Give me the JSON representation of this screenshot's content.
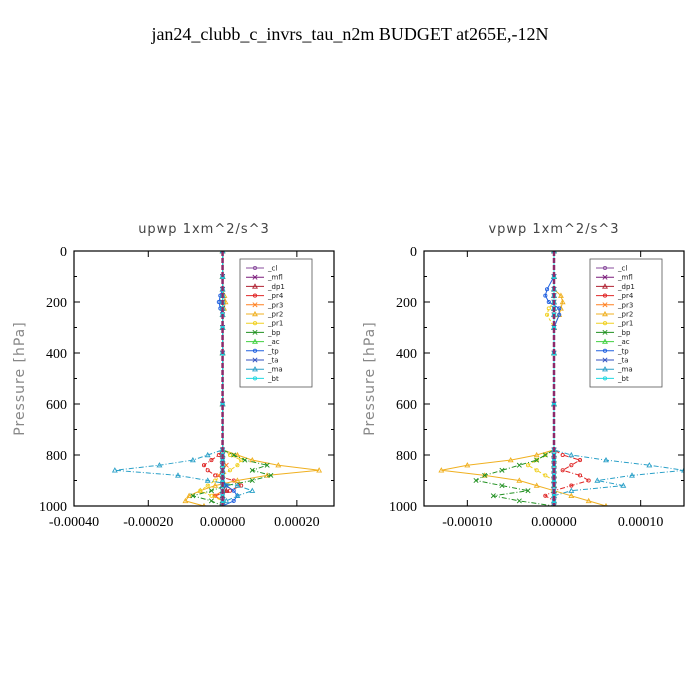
{
  "title": "jan24_clubb_c_invrs_tau_n2m  BUDGET at265E,-12N",
  "chart_data": [
    {
      "type": "line",
      "title": "upwp   1xm^2/s^3",
      "ylabel": "Pressure [hPa]",
      "xlim": [
        -0.0004,
        0.0003
      ],
      "ylim": [
        1000,
        0
      ],
      "xticks": [
        -0.0004,
        -0.0002,
        0,
        0.0002
      ],
      "xtick_labels": [
        "-0.00040",
        "-0.00020",
        "0.00000",
        "0.00020"
      ],
      "yticks": [
        0,
        200,
        400,
        600,
        800,
        1000
      ],
      "ytick_labels": [
        "0",
        "200",
        "400",
        "600",
        "800",
        "1000"
      ],
      "legend_position": "top-right",
      "levels": [
        0,
        100,
        150,
        175,
        200,
        225,
        250,
        300,
        400,
        600,
        780,
        800,
        820,
        840,
        860,
        880,
        900,
        920,
        940,
        960,
        980,
        1000
      ],
      "series": [
        {
          "name": "_cl",
          "color": "#8a4d9e",
          "values": [
            0,
            0,
            0,
            0,
            0,
            0,
            0,
            0,
            0,
            0,
            0,
            0,
            0,
            0,
            0,
            0,
            0,
            0,
            0,
            0,
            0,
            0
          ]
        },
        {
          "name": "_mfl",
          "color": "#7a1a7a",
          "values": [
            0,
            0,
            0,
            0,
            0,
            0,
            0,
            0,
            0,
            0,
            0,
            0,
            0,
            0,
            0,
            0,
            0,
            0,
            0,
            0,
            0,
            0
          ]
        },
        {
          "name": "_dp1",
          "color": "#b02030",
          "values": [
            0,
            0,
            0,
            0,
            0,
            0,
            0,
            0,
            0,
            0,
            0,
            0,
            0,
            0,
            0,
            0,
            0,
            0,
            1e-05,
            0,
            0,
            0
          ]
        },
        {
          "name": "_pr4",
          "color": "#e02828",
          "values": [
            0,
            0,
            0,
            0,
            0,
            0,
            0,
            0,
            0,
            0,
            0,
            -1e-05,
            -3e-05,
            -5e-05,
            -4e-05,
            -2e-05,
            3e-05,
            5e-05,
            2e-05,
            -2e-05,
            0,
            0
          ]
        },
        {
          "name": "_pr3",
          "color": "#ff8020",
          "values": [
            0,
            0,
            0,
            0,
            0,
            0,
            0,
            0,
            0,
            0,
            0,
            0,
            0,
            1e-05,
            0,
            -1e-05,
            0,
            0,
            0,
            -2e-05,
            0,
            0
          ]
        },
        {
          "name": "_pr2",
          "color": "#f0b020",
          "values": [
            0,
            0,
            0,
            5e-06,
            8e-06,
            4e-06,
            0,
            0,
            0,
            0,
            0,
            4e-05,
            8e-05,
            0.00015,
            0.00026,
            0.00012,
            4e-05,
            -2e-05,
            -6e-05,
            -9e-05,
            -0.0001,
            -5e-05
          ]
        },
        {
          "name": "_pr1",
          "color": "#f0d020",
          "values": [
            0,
            0,
            0,
            0,
            0,
            0,
            0,
            0,
            0,
            0,
            0,
            2e-05,
            5e-05,
            4e-05,
            2e-05,
            0,
            -2e-05,
            -4e-05,
            -6e-05,
            -3e-05,
            0,
            0
          ]
        },
        {
          "name": "_bp",
          "color": "#209020",
          "values": [
            0,
            0,
            0,
            0,
            0,
            0,
            0,
            0,
            0,
            0,
            0,
            3e-05,
            6e-05,
            0.00012,
            8e-05,
            0.00013,
            8e-05,
            1e-05,
            -3e-05,
            -8e-05,
            -3e-05,
            0
          ]
        },
        {
          "name": "_ac",
          "color": "#40d040",
          "values": [
            0,
            0,
            0,
            0,
            0,
            0,
            0,
            0,
            0,
            0,
            0,
            0,
            0,
            0,
            0,
            0,
            0,
            0,
            0,
            0,
            0,
            0
          ]
        },
        {
          "name": "_tp",
          "color": "#2060e0",
          "values": [
            0,
            0,
            0,
            -6e-06,
            -1e-05,
            -6e-06,
            0,
            0,
            0,
            0,
            0,
            0,
            0,
            0,
            0,
            0,
            0,
            1e-05,
            3e-05,
            4e-05,
            3e-05,
            0
          ]
        },
        {
          "name": "_ta",
          "color": "#3050c0",
          "values": [
            0,
            0,
            0,
            0,
            0,
            0,
            0,
            0,
            0,
            0,
            0,
            0,
            0,
            0,
            0,
            0,
            0,
            0,
            0,
            0,
            0,
            0
          ]
        },
        {
          "name": "_ma",
          "color": "#2aa0c8",
          "values": [
            0,
            0,
            0,
            0,
            0,
            0,
            0,
            0,
            0,
            0,
            0,
            -4e-05,
            -8e-05,
            -0.00017,
            -0.00029,
            -0.00012,
            -4e-05,
            4e-05,
            8e-05,
            4e-05,
            1e-05,
            0
          ]
        },
        {
          "name": "_bt",
          "color": "#20d8e0",
          "values": [
            0,
            0,
            0,
            0,
            0,
            0,
            0,
            0,
            0,
            0,
            0,
            0,
            0,
            0,
            0,
            0,
            0,
            0,
            0,
            0,
            0,
            0
          ]
        }
      ]
    },
    {
      "type": "line",
      "title": "vpwp   1xm^2/s^3",
      "ylabel": "Pressure [hPa]",
      "xlim": [
        -0.00015,
        0.00015
      ],
      "ylim": [
        1000,
        0
      ],
      "xticks": [
        -0.0001,
        0,
        0.0001
      ],
      "xtick_labels": [
        "-0.00010",
        "0.00000",
        "0.00010"
      ],
      "yticks": [
        0,
        200,
        400,
        600,
        800,
        1000
      ],
      "ytick_labels": [
        "0",
        "200",
        "400",
        "600",
        "800",
        "1000"
      ],
      "legend_position": "top-right",
      "levels": [
        0,
        100,
        150,
        175,
        200,
        225,
        250,
        300,
        400,
        600,
        780,
        800,
        820,
        840,
        860,
        880,
        900,
        920,
        940,
        960,
        980,
        1000
      ],
      "series": [
        {
          "name": "_cl",
          "color": "#8a4d9e",
          "values": [
            0,
            0,
            0,
            0,
            0,
            0,
            0,
            0,
            0,
            0,
            0,
            0,
            0,
            0,
            0,
            0,
            0,
            0,
            0,
            0,
            0,
            0
          ]
        },
        {
          "name": "_mfl",
          "color": "#7a1a7a",
          "values": [
            0,
            0,
            0,
            0,
            0,
            0,
            0,
            0,
            0,
            0,
            0,
            0,
            0,
            0,
            0,
            0,
            0,
            0,
            0,
            0,
            0,
            0
          ]
        },
        {
          "name": "_dp1",
          "color": "#b02030",
          "values": [
            0,
            0,
            0,
            0,
            0,
            0,
            0,
            0,
            0,
            0,
            0,
            0,
            0,
            0,
            0,
            0,
            0,
            0,
            0,
            0,
            0,
            0
          ]
        },
        {
          "name": "_pr4",
          "color": "#e02828",
          "values": [
            0,
            0,
            0,
            0,
            0,
            0,
            0,
            0,
            0,
            0,
            0,
            1e-05,
            3e-05,
            2e-05,
            1e-05,
            3e-05,
            4e-05,
            2e-05,
            0,
            -1e-05,
            0,
            0
          ]
        },
        {
          "name": "_pr3",
          "color": "#ff8020",
          "values": [
            0,
            0,
            0,
            0,
            0,
            0,
            0,
            0,
            0,
            0,
            0,
            0,
            0,
            0,
            0,
            0,
            0,
            0,
            0,
            0,
            0,
            0
          ]
        },
        {
          "name": "_pr2",
          "color": "#f0b020",
          "values": [
            0,
            0,
            0,
            8e-06,
            1e-05,
            8e-06,
            6e-06,
            0,
            0,
            0,
            0,
            -2e-05,
            -5e-05,
            -0.0001,
            -0.00013,
            -8e-05,
            -4e-05,
            -2e-05,
            0,
            2e-05,
            4e-05,
            6e-05
          ]
        },
        {
          "name": "_pr1",
          "color": "#f0d020",
          "values": [
            0,
            0,
            0,
            0,
            0,
            -6e-06,
            -8e-06,
            0,
            0,
            0,
            0,
            -1e-05,
            -2e-05,
            -3e-05,
            -2e-05,
            -1e-05,
            0,
            0,
            0,
            0,
            0,
            0
          ]
        },
        {
          "name": "_bp",
          "color": "#209020",
          "values": [
            0,
            0,
            0,
            0,
            0,
            0,
            0,
            0,
            0,
            0,
            0,
            -1e-05,
            -2e-05,
            -4e-05,
            -6e-05,
            -8e-05,
            -9e-05,
            -6e-05,
            -3e-05,
            -7e-05,
            -4e-05,
            0
          ]
        },
        {
          "name": "_ac",
          "color": "#40d040",
          "values": [
            0,
            0,
            0,
            0,
            0,
            0,
            0,
            0,
            0,
            0,
            0,
            0,
            0,
            0,
            0,
            0,
            0,
            0,
            0,
            0,
            0,
            0
          ]
        },
        {
          "name": "_tp",
          "color": "#2060e0",
          "values": [
            0,
            0,
            -8e-06,
            -1e-05,
            -6e-06,
            6e-06,
            6e-06,
            0,
            0,
            0,
            0,
            0,
            0,
            0,
            0,
            0,
            0,
            0,
            0,
            0,
            0,
            0
          ]
        },
        {
          "name": "_ta",
          "color": "#3050c0",
          "values": [
            0,
            0,
            0,
            0,
            0,
            0,
            0,
            0,
            0,
            0,
            0,
            0,
            0,
            0,
            0,
            0,
            0,
            0,
            0,
            0,
            0,
            0
          ]
        },
        {
          "name": "_ma",
          "color": "#2aa0c8",
          "values": [
            0,
            0,
            0,
            0,
            0,
            0,
            0,
            0,
            0,
            0,
            0,
            2e-05,
            6e-05,
            0.00011,
            0.00015,
            9e-05,
            5e-05,
            8e-05,
            2e-05,
            0,
            0,
            0
          ]
        },
        {
          "name": "_bt",
          "color": "#20d8e0",
          "values": [
            0,
            0,
            0,
            0,
            0,
            0,
            0,
            0,
            0,
            0,
            0,
            0,
            0,
            0,
            0,
            0,
            0,
            0,
            0,
            0,
            0,
            0
          ]
        }
      ]
    }
  ]
}
